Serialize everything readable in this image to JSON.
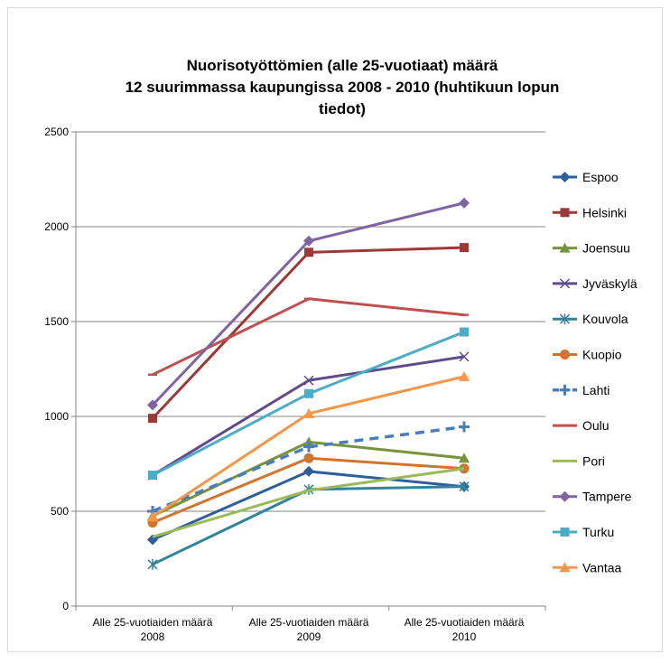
{
  "chart_data": {
    "type": "line",
    "title_lines": [
      "Nuorisotyöttömien (alle 25-vuotiaat) määrä",
      "12 suurimmassa kaupungissa 2008 - 2010 (huhtikuun lopun",
      "tiedot)"
    ],
    "xlabel": "",
    "ylabel": "",
    "categories": [
      [
        "Alle 25-vuotiaiden määrä",
        "2008"
      ],
      [
        "Alle 25-vuotiaiden määrä",
        "2009"
      ],
      [
        "Alle 25-vuotiaiden määrä",
        "2010"
      ]
    ],
    "ylim": [
      0,
      2500
    ],
    "yticks": [
      "0",
      "500",
      "1000",
      "1500",
      "2000",
      "2500"
    ],
    "grid": true,
    "legend_position": "right",
    "series": [
      {
        "name": "Espoo",
        "values": [
          350,
          710,
          630
        ],
        "color": "#2e5f9a",
        "marker": "diamond",
        "dash": false
      },
      {
        "name": "Helsinki",
        "values": [
          990,
          1865,
          1890
        ],
        "color": "#9c3835",
        "marker": "square",
        "dash": false
      },
      {
        "name": "Joensuu",
        "values": [
          475,
          865,
          780
        ],
        "color": "#77933c",
        "marker": "triangle",
        "dash": false
      },
      {
        "name": "Jyväskylä",
        "values": [
          690,
          1190,
          1315
        ],
        "color": "#5f4b8b",
        "marker": "x",
        "dash": false
      },
      {
        "name": "Kouvola",
        "values": [
          220,
          615,
          630
        ],
        "color": "#31849b",
        "marker": "star",
        "dash": false
      },
      {
        "name": "Kuopio",
        "values": [
          440,
          780,
          725
        ],
        "color": "#d07530",
        "marker": "circle",
        "dash": false
      },
      {
        "name": "Lahti",
        "values": [
          500,
          840,
          945
        ],
        "color": "#4a7ebb",
        "marker": "plus",
        "dash": true
      },
      {
        "name": "Oulu",
        "values": [
          1220,
          1620,
          1535
        ],
        "color": "#c0504d",
        "marker": "dash",
        "dash": false
      },
      {
        "name": "Pori",
        "values": [
          365,
          610,
          725
        ],
        "color": "#9bbb59",
        "marker": "none",
        "dash": false
      },
      {
        "name": "Tampere",
        "values": [
          1060,
          1925,
          2125
        ],
        "color": "#8064a2",
        "marker": "diamond",
        "dash": false
      },
      {
        "name": "Turku",
        "values": [
          690,
          1120,
          1445
        ],
        "color": "#4bacc6",
        "marker": "square",
        "dash": false
      },
      {
        "name": "Vantaa",
        "values": [
          470,
          1015,
          1210
        ],
        "color": "#f79646",
        "marker": "triangle",
        "dash": false
      }
    ]
  }
}
